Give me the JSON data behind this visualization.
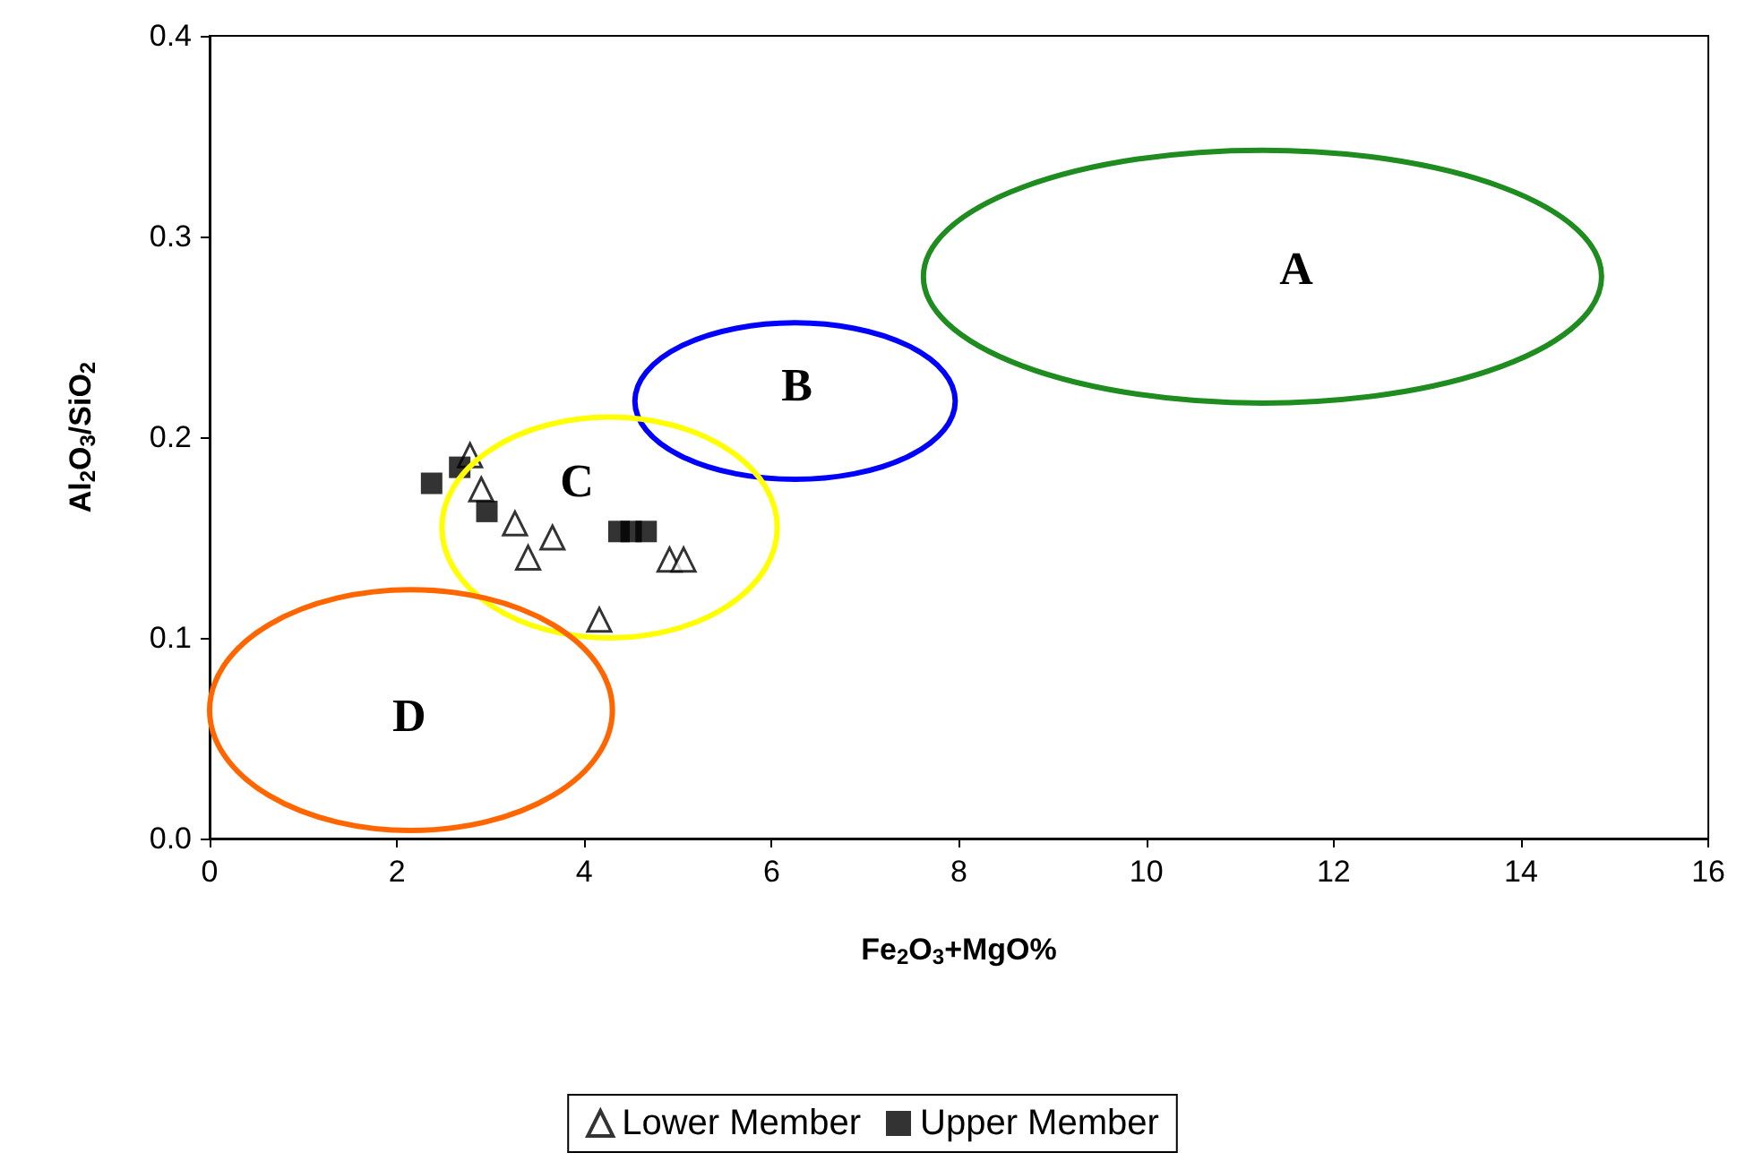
{
  "chart_data": {
    "type": "scatter",
    "xlabel": "Fe$_{2}$O$_{3}$+MgO%",
    "ylabel": "Al$_{2}$O$_{3}$/SiO$_{2}$",
    "xlim": [
      0,
      16
    ],
    "xticks": [
      0,
      2,
      4,
      6,
      8,
      10,
      12,
      14,
      16
    ],
    "ylim": [
      0,
      0.4
    ],
    "yticks": [
      {
        "value": 0,
        "label": "0.0"
      },
      {
        "value": 0.1,
        "label": "0.1"
      },
      {
        "value": 0.2,
        "label": "0.2"
      },
      {
        "value": 0.3,
        "label": "0.3"
      },
      {
        "value": 0.4,
        "label": "0.4"
      }
    ],
    "grid": false,
    "legend": "bottom",
    "series": [
      {
        "name": "Lower Member",
        "color": "#000000",
        "marker": "triangle",
        "x": [
          2.78,
          2.9,
          3.26,
          3.66,
          3.4,
          4.91,
          5.06,
          4.16
        ],
        "values": [
          0.191,
          0.174,
          0.157,
          0.15,
          0.14,
          0.139,
          0.139,
          0.109
        ]
      },
      {
        "name": "Upper Member",
        "color": "#000000",
        "marker": "square",
        "x": [
          2.37,
          2.67,
          2.96,
          4.37,
          4.5,
          4.66
        ],
        "values": [
          0.177,
          0.185,
          0.163,
          0.153,
          0.153,
          0.153
        ]
      }
    ],
    "annotations": [
      "A",
      "B",
      "C",
      "D"
    ]
  }
}
